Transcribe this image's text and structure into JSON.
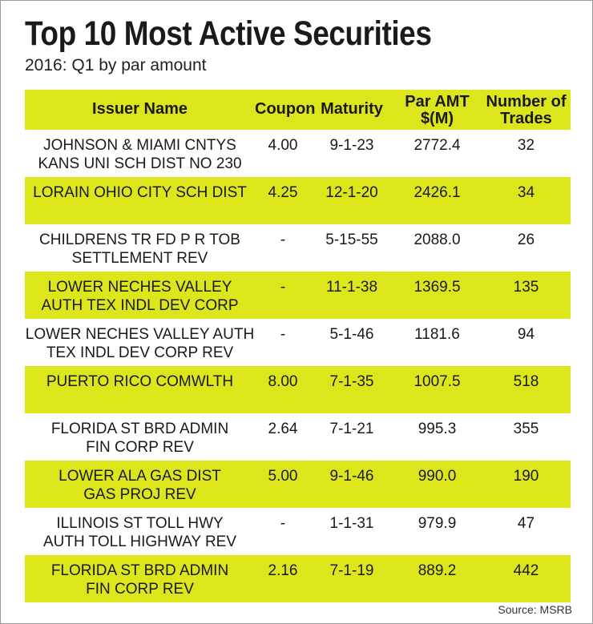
{
  "title": "Top 10 Most Active Securities",
  "subtitle": "2016: Q1 by par amount",
  "colors": {
    "highlight": "#dde51b",
    "text": "#1a1a1a",
    "background": "#ffffff"
  },
  "table": {
    "headers": {
      "issuer": "Issuer Name",
      "coupon": "Coupon",
      "maturity": "Maturity",
      "par_line1": "Par AMT",
      "par_line2": "$(M)",
      "trades_line1": "Number of",
      "trades_line2": "Trades"
    },
    "rows": [
      {
        "issuer1": "JOHNSON & MIAMI CNTYS",
        "issuer2": "KANS UNI SCH DIST NO 230",
        "coupon": "4.00",
        "maturity": "9-1-23",
        "par": "2772.4",
        "trades": "32"
      },
      {
        "issuer1": "LORAIN OHIO CITY SCH DIST",
        "issuer2": "",
        "coupon": "4.25",
        "maturity": "12-1-20",
        "par": "2426.1",
        "trades": "34"
      },
      {
        "issuer1": "CHILDRENS TR FD P R TOB",
        "issuer2": "SETTLEMENT REV",
        "coupon": "-",
        "maturity": "5-15-55",
        "par": "2088.0",
        "trades": "26"
      },
      {
        "issuer1": "LOWER NECHES VALLEY",
        "issuer2": "AUTH TEX INDL DEV CORP",
        "coupon": "-",
        "maturity": "11-1-38",
        "par": "1369.5",
        "trades": "135"
      },
      {
        "issuer1": "LOWER NECHES VALLEY AUTH",
        "issuer2": "TEX INDL DEV CORP REV",
        "coupon": "-",
        "maturity": "5-1-46",
        "par": "1181.6",
        "trades": "94"
      },
      {
        "issuer1": "PUERTO RICO COMWLTH",
        "issuer2": "",
        "coupon": "8.00",
        "maturity": "7-1-35",
        "par": "1007.5",
        "trades": "518"
      },
      {
        "issuer1": "FLORIDA ST BRD ADMIN",
        "issuer2": "FIN CORP REV",
        "coupon": "2.64",
        "maturity": "7-1-21",
        "par": "995.3",
        "trades": "355"
      },
      {
        "issuer1": "LOWER ALA GAS DIST",
        "issuer2": "GAS PROJ REV",
        "coupon": "5.00",
        "maturity": "9-1-46",
        "par": "990.0",
        "trades": "190"
      },
      {
        "issuer1": "ILLINOIS ST TOLL HWY",
        "issuer2": "AUTH TOLL HIGHWAY REV",
        "coupon": "-",
        "maturity": "1-1-31",
        "par": "979.9",
        "trades": "47"
      },
      {
        "issuer1": "FLORIDA ST BRD ADMIN",
        "issuer2": "FIN CORP REV",
        "coupon": "2.16",
        "maturity": "7-1-19",
        "par": "889.2",
        "trades": "442"
      }
    ]
  },
  "source": "Source: MSRB"
}
